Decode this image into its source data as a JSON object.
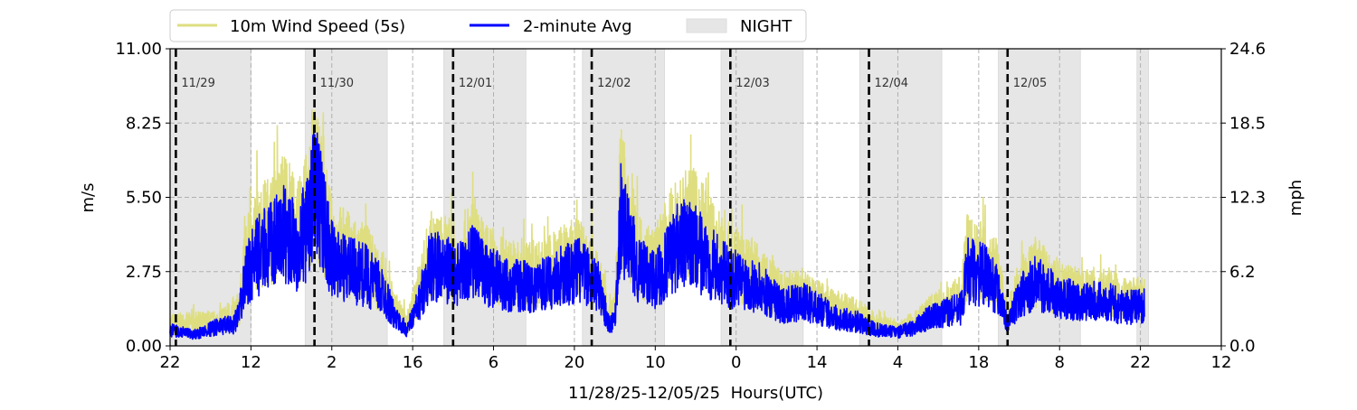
{
  "chart_data": {
    "type": "line",
    "xlabel": "11/28/25-12/05/25  Hours(UTC)",
    "ylabel": "m/s",
    "ylabel_right": "mph",
    "x_unit": "hours since 11/28 22:00 UTC",
    "xlim": [
      0,
      182
    ],
    "ylim": [
      0,
      11
    ],
    "x_ticks": [
      {
        "hour": 0,
        "label": "22"
      },
      {
        "hour": 14,
        "label": "12"
      },
      {
        "hour": 28,
        "label": "2"
      },
      {
        "hour": 42,
        "label": "16"
      },
      {
        "hour": 56,
        "label": "6"
      },
      {
        "hour": 70,
        "label": "20"
      },
      {
        "hour": 84,
        "label": "10"
      },
      {
        "hour": 98,
        "label": "0"
      },
      {
        "hour": 112,
        "label": "14"
      },
      {
        "hour": 126,
        "label": "4"
      },
      {
        "hour": 140,
        "label": "18"
      },
      {
        "hour": 154,
        "label": "8"
      },
      {
        "hour": 168,
        "label": "22"
      },
      {
        "hour": 182,
        "label": "12"
      }
    ],
    "y_ticks": [
      {
        "value": 0,
        "label": "0.00"
      },
      {
        "value": 2.75,
        "label": "2.75"
      },
      {
        "value": 5.5,
        "label": "5.50"
      },
      {
        "value": 8.25,
        "label": "8.25"
      },
      {
        "value": 11,
        "label": "11.00"
      }
    ],
    "y_ticks_right": [
      "0.0",
      "6.2",
      "12.3",
      "18.5",
      "24.6"
    ],
    "grid": true,
    "legend": {
      "placement": "top-center",
      "entries": [
        "10m Wind Speed (5s)",
        "2-minute Avg",
        "NIGHT"
      ]
    },
    "day_markers": [
      {
        "hour": 1,
        "label": "11/29"
      },
      {
        "hour": 25,
        "label": "11/30"
      },
      {
        "hour": 49,
        "label": "12/01"
      },
      {
        "hour": 73,
        "label": "12/02"
      },
      {
        "hour": 97,
        "label": "12/03"
      },
      {
        "hour": 121,
        "label": "12/04"
      },
      {
        "hour": 145,
        "label": "12/05"
      }
    ],
    "night_periods": [
      [
        -1,
        14
      ],
      [
        23.4,
        37.6
      ],
      [
        47.4,
        61.6
      ],
      [
        71.4,
        85.6
      ],
      [
        95.4,
        109.6
      ],
      [
        119.4,
        133.6
      ],
      [
        143.4,
        157.6
      ],
      [
        167.4,
        169.4
      ]
    ],
    "colors": {
      "wind5s": "#dede80",
      "avg2min": "#0000ff",
      "night": "#e6e6e6"
    },
    "series": [
      {
        "name": "10m Wind Speed (5s)",
        "points": [
          [
            0,
            1.2
          ],
          [
            8,
            1.3
          ],
          [
            12,
            2.0
          ],
          [
            13,
            4.5
          ],
          [
            15,
            6.0
          ],
          [
            18,
            6.5
          ],
          [
            20,
            7.5
          ],
          [
            22,
            6.0
          ],
          [
            24,
            7.5
          ],
          [
            25,
            9.5
          ],
          [
            26,
            8.0
          ],
          [
            28,
            5.5
          ],
          [
            31,
            5.0
          ],
          [
            34,
            4.5
          ],
          [
            37,
            3.5
          ],
          [
            39,
            2.0
          ],
          [
            41,
            1.2
          ],
          [
            43,
            3.0
          ],
          [
            45,
            5.0
          ],
          [
            48,
            4.8
          ],
          [
            50,
            4.5
          ],
          [
            52,
            5.5
          ],
          [
            55,
            4.5
          ],
          [
            58,
            4.0
          ],
          [
            62,
            4.0
          ],
          [
            65,
            4.0
          ],
          [
            68,
            4.5
          ],
          [
            71,
            4.8
          ],
          [
            74,
            4.0
          ],
          [
            76,
            1.5
          ],
          [
            77,
            2.0
          ],
          [
            78,
            8.5
          ],
          [
            79,
            7.0
          ],
          [
            81,
            5.0
          ],
          [
            84,
            4.5
          ],
          [
            86,
            5.5
          ],
          [
            88,
            6.5
          ],
          [
            91,
            6.5
          ],
          [
            94,
            5.5
          ],
          [
            97,
            4.5
          ],
          [
            100,
            4.2
          ],
          [
            103,
            3.5
          ],
          [
            106,
            2.8
          ],
          [
            110,
            2.8
          ],
          [
            113,
            2.4
          ],
          [
            116,
            2.0
          ],
          [
            119,
            1.8
          ],
          [
            122,
            1.2
          ],
          [
            126,
            1.0
          ],
          [
            129,
            1.3
          ],
          [
            131,
            1.8
          ],
          [
            134,
            2.2
          ],
          [
            137,
            2.6
          ],
          [
            138,
            5.0
          ],
          [
            141,
            4.6
          ],
          [
            143,
            4.0
          ],
          [
            145,
            1.6
          ],
          [
            147,
            3.2
          ],
          [
            150,
            4.0
          ],
          [
            154,
            3.2
          ],
          [
            158,
            2.8
          ],
          [
            162,
            3.0
          ],
          [
            165,
            2.5
          ],
          [
            168.7,
            2.6
          ]
        ]
      },
      {
        "name": "2-minute Avg",
        "points": [
          [
            0,
            0.6
          ],
          [
            4,
            0.4
          ],
          [
            8,
            0.7
          ],
          [
            11,
            0.8
          ],
          [
            12,
            1.2
          ],
          [
            13,
            2.5
          ],
          [
            15,
            3.3
          ],
          [
            18,
            3.8
          ],
          [
            20,
            4.2
          ],
          [
            22,
            3.6
          ],
          [
            24,
            4.5
          ],
          [
            25,
            6.0
          ],
          [
            26,
            5.2
          ],
          [
            28,
            3.2
          ],
          [
            31,
            2.8
          ],
          [
            34,
            2.6
          ],
          [
            37,
            2.0
          ],
          [
            39,
            1.0
          ],
          [
            41,
            0.6
          ],
          [
            43,
            1.5
          ],
          [
            45,
            3.0
          ],
          [
            48,
            2.8
          ],
          [
            50,
            2.6
          ],
          [
            52,
            3.2
          ],
          [
            55,
            2.6
          ],
          [
            58,
            2.3
          ],
          [
            62,
            2.2
          ],
          [
            65,
            2.3
          ],
          [
            68,
            2.6
          ],
          [
            71,
            2.8
          ],
          [
            74,
            2.3
          ],
          [
            76,
            0.8
          ],
          [
            77,
            1.0
          ],
          [
            78,
            4.8
          ],
          [
            79,
            4.2
          ],
          [
            81,
            2.8
          ],
          [
            84,
            2.5
          ],
          [
            86,
            3.0
          ],
          [
            88,
            3.8
          ],
          [
            91,
            3.6
          ],
          [
            94,
            3.0
          ],
          [
            97,
            2.5
          ],
          [
            100,
            2.4
          ],
          [
            103,
            2.0
          ],
          [
            106,
            1.5
          ],
          [
            110,
            1.6
          ],
          [
            113,
            1.3
          ],
          [
            116,
            1.0
          ],
          [
            119,
            0.9
          ],
          [
            122,
            0.6
          ],
          [
            126,
            0.5
          ],
          [
            129,
            0.7
          ],
          [
            131,
            1.0
          ],
          [
            134,
            1.2
          ],
          [
            137,
            1.4
          ],
          [
            138,
            2.8
          ],
          [
            141,
            2.6
          ],
          [
            143,
            2.2
          ],
          [
            145,
            0.8
          ],
          [
            147,
            1.8
          ],
          [
            150,
            2.4
          ],
          [
            154,
            1.8
          ],
          [
            158,
            1.6
          ],
          [
            162,
            1.7
          ],
          [
            165,
            1.4
          ],
          [
            168.7,
            1.5
          ]
        ]
      }
    ]
  }
}
